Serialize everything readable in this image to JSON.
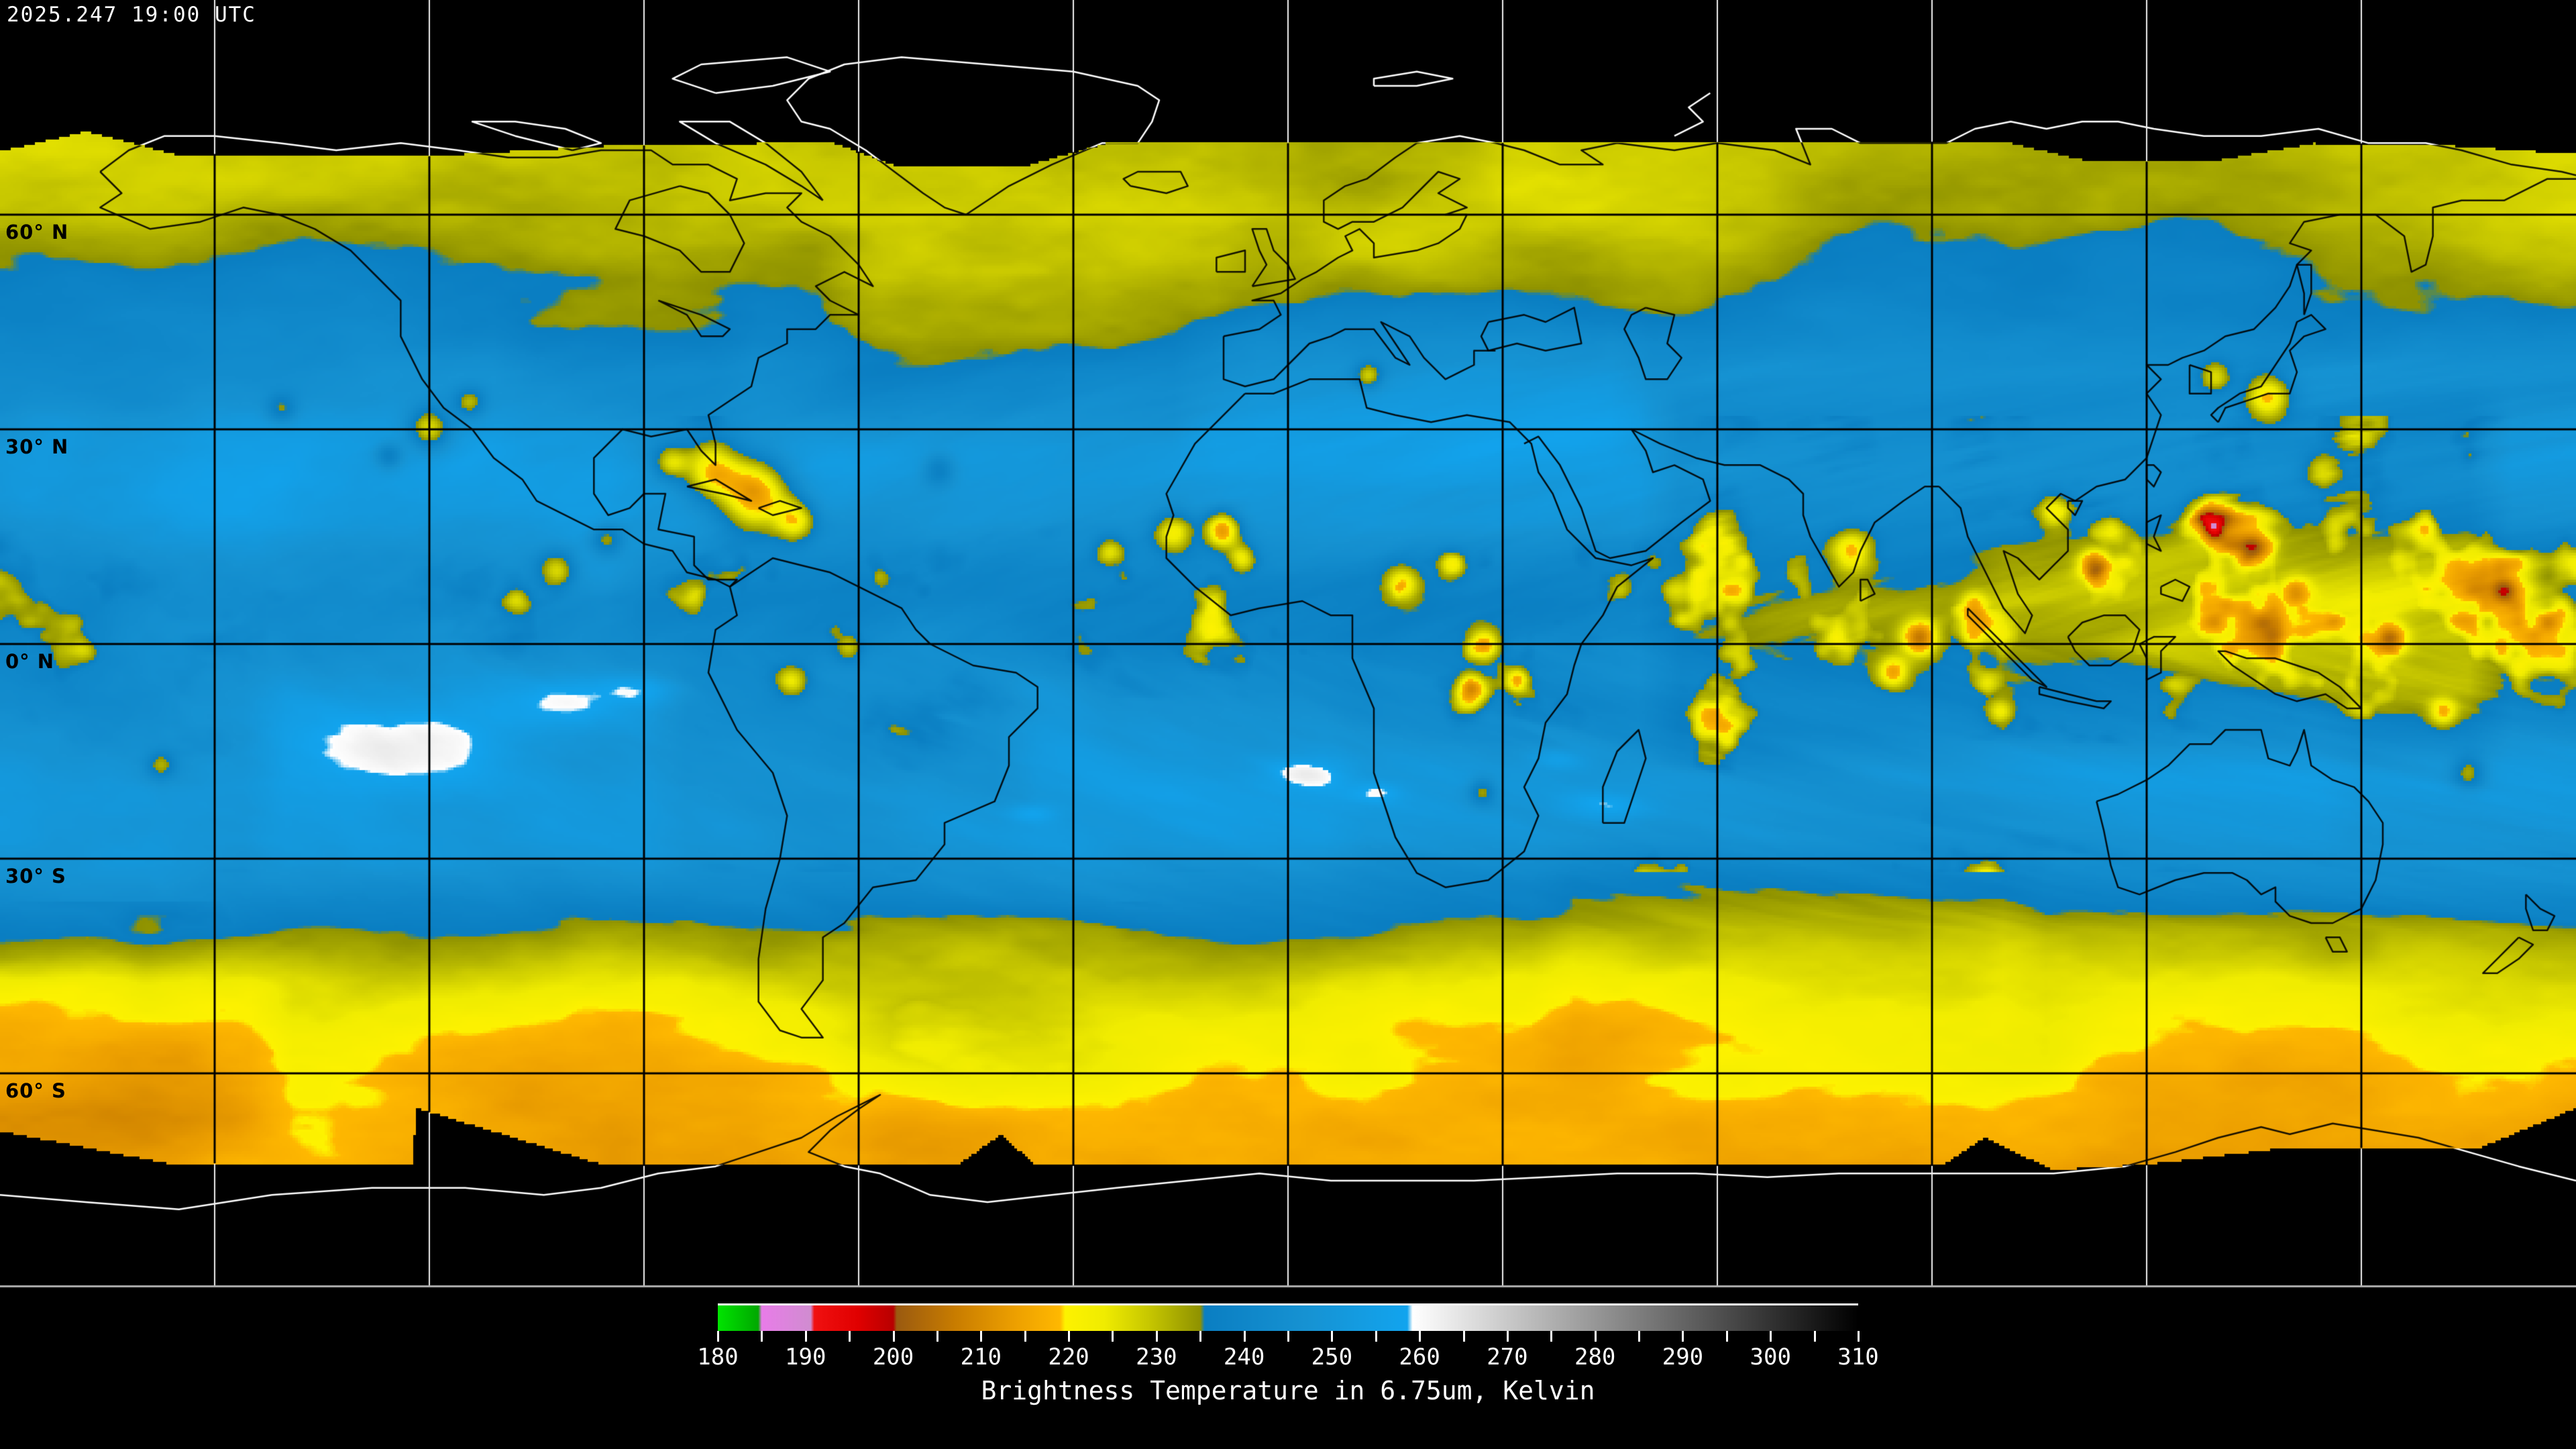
{
  "header": {
    "timestamp": "2025.247 19:00 UTC"
  },
  "map": {
    "projection": "equirectangular",
    "background_color": "#000000",
    "latitude_labels": [
      {
        "text": "60° N",
        "lat": 60
      },
      {
        "text": "30° N",
        "lat": 30
      },
      {
        "text": "0° N",
        "lat": 0
      },
      {
        "text": "30° S",
        "lat": -30
      },
      {
        "text": "60° S",
        "lat": -60
      }
    ],
    "grid": {
      "lon_step_deg": 30,
      "lat_step_deg": 30,
      "line_color_over_data": "#000000",
      "line_color_over_void": "#f0f0f0"
    },
    "coastline_color_over_data": "#000000",
    "coastline_color_over_void": "#ffffff"
  },
  "colorbar": {
    "title": "Brightness Temperature in 6.75um, Kelvin",
    "min_k": 180,
    "max_k": 310,
    "tick_step_k": 5,
    "label_step_k": 10,
    "tick_labels": [
      "180",
      "190",
      "200",
      "210",
      "220",
      "230",
      "240",
      "250",
      "260",
      "270",
      "280",
      "290",
      "300",
      "310"
    ],
    "segments": [
      {
        "from_k": 180,
        "to_k": 185,
        "desc": "green"
      },
      {
        "from_k": 185,
        "to_k": 191,
        "desc": "violet"
      },
      {
        "from_k": 191,
        "to_k": 200,
        "desc": "red"
      },
      {
        "from_k": 200,
        "to_k": 219,
        "desc": "brown-orange"
      },
      {
        "from_k": 219,
        "to_k": 235,
        "desc": "yellow-olive"
      },
      {
        "from_k": 235,
        "to_k": 259,
        "desc": "blue"
      },
      {
        "from_k": 259,
        "to_k": 310,
        "desc": "white-to-black"
      }
    ],
    "stops": [
      {
        "k": 180.0,
        "color": "#00e400"
      },
      {
        "k": 184.6,
        "color": "#00a800"
      },
      {
        "k": 185.0,
        "color": "#e87ce8"
      },
      {
        "k": 190.6,
        "color": "#d08cd0"
      },
      {
        "k": 191.0,
        "color": "#f01010"
      },
      {
        "k": 196.0,
        "color": "#e00000"
      },
      {
        "k": 200.0,
        "color": "#b80000"
      },
      {
        "k": 200.4,
        "color": "#9a5a10"
      },
      {
        "k": 207.0,
        "color": "#c87c00"
      },
      {
        "k": 214.0,
        "color": "#eda000"
      },
      {
        "k": 219.0,
        "color": "#ffb800"
      },
      {
        "k": 219.6,
        "color": "#fdf200"
      },
      {
        "k": 224.0,
        "color": "#f0ec00"
      },
      {
        "k": 229.0,
        "color": "#c8c800"
      },
      {
        "k": 235.0,
        "color": "#8f9200"
      },
      {
        "k": 235.5,
        "color": "#0a7ec2"
      },
      {
        "k": 247.0,
        "color": "#1692d2"
      },
      {
        "k": 258.6,
        "color": "#12a4ee"
      },
      {
        "k": 259.2,
        "color": "#ffffff"
      },
      {
        "k": 310.0,
        "color": "#000000"
      }
    ]
  }
}
